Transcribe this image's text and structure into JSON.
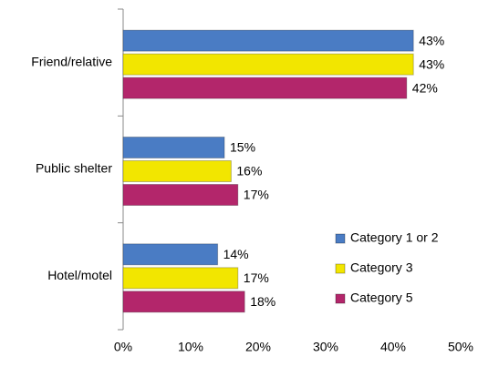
{
  "chart_data": {
    "type": "hbar",
    "categories": [
      "Friend/relative",
      "Public shelter",
      "Hotel/motel"
    ],
    "series": [
      {
        "name": "Category 1 or 2",
        "color": "#4a7cc4",
        "values": [
          43,
          15,
          14
        ],
        "value_labels": [
          "43%",
          "15%",
          "14%"
        ]
      },
      {
        "name": "Category 3",
        "color": "#f2e600",
        "values": [
          43,
          16,
          17
        ],
        "value_labels": [
          "43%",
          "16%",
          "17%"
        ]
      },
      {
        "name": "Category 5",
        "color": "#b3266b",
        "values": [
          42,
          17,
          18
        ],
        "value_labels": [
          "42%",
          "17%",
          "18%"
        ]
      }
    ],
    "xlim": [
      0,
      50
    ],
    "xticks": [
      {
        "value": 0,
        "label": "0%"
      },
      {
        "value": 10,
        "label": "10%"
      },
      {
        "value": 20,
        "label": "20%"
      },
      {
        "value": 30,
        "label": "30%"
      },
      {
        "value": 40,
        "label": "40%"
      },
      {
        "value": 50,
        "label": "50%"
      }
    ],
    "legend": "lower right"
  }
}
